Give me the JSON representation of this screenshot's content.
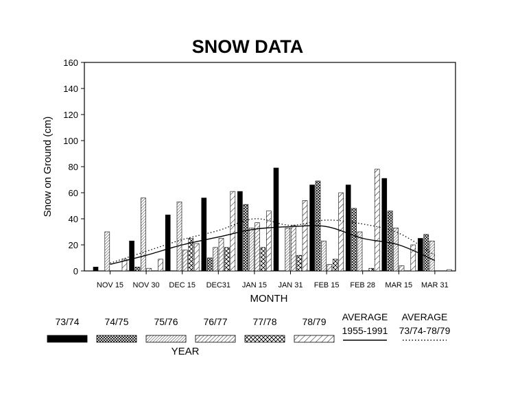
{
  "chart_data": {
    "type": "bar",
    "title": "SNOW DATA",
    "xlabel": "MONTH",
    "ylabel": "Snow on Ground (cm)",
    "legend_title": "YEAR",
    "ylim": [
      0,
      160
    ],
    "yticks": [
      0,
      20,
      40,
      60,
      80,
      100,
      120,
      140,
      160
    ],
    "grid": false,
    "legend_position": "bottom",
    "categories": [
      "NOV 15",
      "NOV 30",
      "DEC 15",
      "DEC31",
      "JAN 15",
      "JAN 31",
      "FEB 15",
      "FEB 28",
      "MAR 15",
      "MAR 31"
    ],
    "series": [
      {
        "name": "73/74",
        "pattern": "solid",
        "values": [
          3,
          23,
          43,
          56,
          61,
          79,
          66,
          66,
          71,
          25
        ]
      },
      {
        "name": "74/75",
        "pattern": "crosshatch",
        "values": [
          0,
          3,
          0,
          10,
          51,
          0,
          69,
          48,
          46,
          28
        ]
      },
      {
        "name": "75/76",
        "pattern": "hatch-fine",
        "values": [
          30,
          56,
          53,
          18,
          33,
          33,
          23,
          30,
          33,
          23
        ]
      },
      {
        "name": "76/77",
        "pattern": "hatch-medium",
        "values": [
          0,
          2,
          16,
          25,
          37,
          35,
          5,
          0,
          4,
          0
        ]
      },
      {
        "name": "77/78",
        "pattern": "crosshatch-coarse",
        "values": [
          0,
          0,
          25,
          18,
          18,
          12,
          9,
          2,
          0,
          0
        ]
      },
      {
        "name": "78/79",
        "pattern": "hatch-wide",
        "values": [
          9,
          9,
          21,
          61,
          46,
          54,
          60,
          78,
          20,
          1
        ]
      }
    ],
    "lines": [
      {
        "name": "AVERAGE 1955-1991",
        "style": "solid",
        "values": [
          5,
          12,
          20,
          26,
          32,
          34,
          34,
          25,
          20,
          8
        ]
      },
      {
        "name": "AVERAGE 73/74-78/79",
        "style": "dotted",
        "values": [
          6,
          15,
          24,
          31,
          40,
          35,
          39,
          36,
          29,
          12
        ]
      }
    ],
    "legend_line_labels": [
      {
        "line1": "AVERAGE",
        "line2": "1955-1991"
      },
      {
        "line1": "AVERAGE",
        "line2": "73/74-78/79"
      }
    ]
  }
}
